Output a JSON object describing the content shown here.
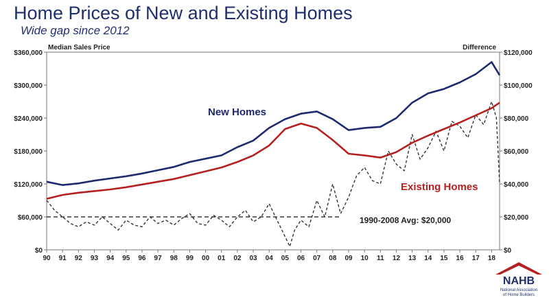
{
  "header": {
    "title": "Home Prices of New and Existing Homes",
    "subtitle": "Wide gap since 2012"
  },
  "logo": {
    "abbr": "NAHB",
    "line1": "National Association",
    "line2": "of Home Builders"
  },
  "colors": {
    "new_homes": "#1f2a6e",
    "existing_homes": "#b52121",
    "difference": "#333333",
    "brand": "#1f2f6e"
  },
  "chart_data": {
    "type": "line",
    "left_axis_label": "Median Sales Price",
    "right_axis_label": "Difference",
    "left_ylim": [
      0,
      360000
    ],
    "right_ylim": [
      0,
      120000
    ],
    "left_ticks": [
      "$0",
      "$60,000",
      "$120,000",
      "$180,000",
      "$240,000",
      "$300,000",
      "$360,000"
    ],
    "right_ticks": [
      "$0",
      "$20,000",
      "$40,000",
      "$60,000",
      "$80,000",
      "$100,000",
      "$120,000"
    ],
    "x_ticks": [
      "90",
      "91",
      "92",
      "93",
      "94",
      "95",
      "96",
      "97",
      "98",
      "99",
      "00",
      "01",
      "02",
      "03",
      "04",
      "05",
      "06",
      "07",
      "08",
      "09",
      "10",
      "11",
      "12",
      "13",
      "14",
      "15",
      "16",
      "17",
      "18"
    ],
    "xlim": [
      1990,
      2018.5
    ],
    "grid": false,
    "series": [
      {
        "name": "New Homes",
        "axis": "left",
        "x": [
          1990,
          1991,
          1992,
          1993,
          1994,
          1995,
          1996,
          1997,
          1998,
          1999,
          2000,
          2001,
          2002,
          2003,
          2004,
          2005,
          2006,
          2007,
          2008,
          2009,
          2010,
          2011,
          2012,
          2013,
          2014,
          2015,
          2016,
          2017,
          2018,
          2018.5
        ],
        "values": [
          124000,
          118000,
          121000,
          126000,
          130000,
          134000,
          139000,
          145000,
          151000,
          160000,
          166000,
          172000,
          187000,
          199000,
          222000,
          238000,
          248000,
          252000,
          238000,
          218000,
          222000,
          224000,
          240000,
          268000,
          285000,
          293000,
          305000,
          320000,
          342000,
          318000
        ]
      },
      {
        "name": "Existing Homes",
        "axis": "left",
        "x": [
          1990,
          1991,
          1992,
          1993,
          1994,
          1995,
          1996,
          1997,
          1998,
          1999,
          2000,
          2001,
          2002,
          2003,
          2004,
          2005,
          2006,
          2007,
          2008,
          2009,
          2010,
          2011,
          2012,
          2013,
          2014,
          2015,
          2016,
          2017,
          2018,
          2018.5
        ],
        "values": [
          93000,
          100000,
          104000,
          107000,
          110000,
          114000,
          119000,
          124000,
          129000,
          136000,
          143000,
          150000,
          160000,
          172000,
          190000,
          220000,
          230000,
          222000,
          200000,
          175000,
          172000,
          168000,
          178000,
          195000,
          208000,
          220000,
          232000,
          245000,
          258000,
          268000
        ]
      },
      {
        "name": "Difference",
        "axis": "right",
        "x": [
          1990,
          1990.5,
          1991,
          1991.5,
          1992,
          1992.5,
          1993,
          1993.5,
          1994,
          1994.5,
          1995,
          1995.5,
          1996,
          1996.5,
          1997,
          1997.5,
          1998,
          1998.5,
          1999,
          1999.5,
          2000,
          2000.5,
          2001,
          2001.5,
          2002,
          2002.5,
          2003,
          2003.5,
          2004,
          2004.5,
          2005,
          2005.3,
          2005.6,
          2006,
          2006.5,
          2007,
          2007.5,
          2008,
          2008.5,
          2009,
          2009.5,
          2010,
          2010.5,
          2011,
          2011.5,
          2012,
          2012.5,
          2013,
          2013.5,
          2014,
          2014.5,
          2015,
          2015.5,
          2016,
          2016.5,
          2017,
          2017.5,
          2018,
          2018.3,
          2018.5
        ],
        "values": [
          30000,
          24000,
          20000,
          16000,
          14000,
          17000,
          15000,
          20000,
          16000,
          12000,
          18000,
          15000,
          14000,
          20000,
          16000,
          18000,
          15000,
          19000,
          22000,
          16000,
          15000,
          21000,
          18000,
          14000,
          20000,
          24000,
          17000,
          20000,
          28000,
          18000,
          8000,
          2000,
          12000,
          18000,
          14000,
          30000,
          20000,
          40000,
          22000,
          32000,
          45000,
          50000,
          42000,
          40000,
          60000,
          52000,
          48000,
          70000,
          55000,
          62000,
          72000,
          60000,
          78000,
          75000,
          68000,
          82000,
          76000,
          90000,
          80000,
          40000
        ]
      }
    ],
    "reference_line": {
      "value": 20000,
      "axis": "right",
      "x_range": [
        1990,
        2008.5
      ]
    },
    "annotations": {
      "new_homes": "New Homes",
      "existing_homes": "Existing Homes",
      "average": "1990-2008 Avg: $20,000"
    }
  }
}
